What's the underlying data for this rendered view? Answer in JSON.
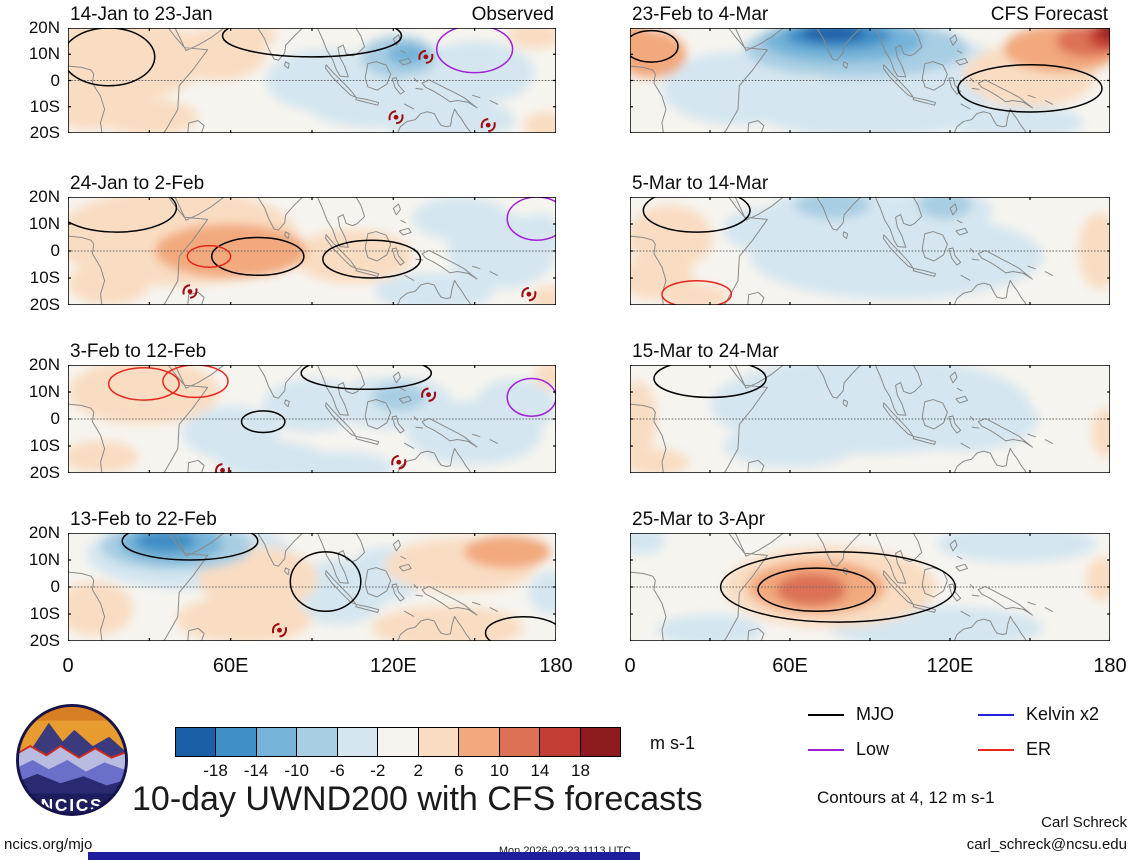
{
  "chart_data": {
    "type": "heatmap",
    "title": "10-day UWND200 with CFS forecasts",
    "variable": "UWND200",
    "units": "m s-1",
    "columns": [
      "Observed",
      "CFS Forecast"
    ],
    "x_axis": {
      "tick_labels": [
        "0",
        "60E",
        "120E",
        "180"
      ],
      "range_deg_east": [
        0,
        180
      ]
    },
    "y_axis": {
      "tick_labels": [
        "20N",
        "10N",
        "0",
        "10S",
        "20S"
      ],
      "range_deg_north": [
        20,
        -20
      ]
    },
    "colorbar": {
      "tick_labels": [
        "-18",
        "-14",
        "-10",
        "-6",
        "-2",
        "2",
        "6",
        "10",
        "14",
        "18"
      ],
      "colors": [
        "#1b5fa7",
        "#3f8ec6",
        "#75b3d8",
        "#a8cee3",
        "#d5e6f0",
        "#f7f4f0",
        "#f9ddc2",
        "#f2a97d",
        "#dc7156",
        "#c23d33",
        "#8e1b1e"
      ]
    },
    "contour_levels_note": "Contours at 4, 12 m s-1",
    "anomaly_format": [
      "lon_e",
      "lat_n",
      "radius_lon",
      "radius_lat",
      "value_m_s"
    ],
    "contour_format": [
      "wave",
      "lon_e",
      "lat_n",
      "radius_lon",
      "radius_lat"
    ],
    "cyclone_format": [
      "lon_e",
      "lat_n"
    ],
    "panels": [
      {
        "title": "14-Jan to 23-Jan",
        "corner_label": "Observed",
        "anomalies": [
          [
            20,
            8,
            30,
            16,
            4
          ],
          [
            8,
            -10,
            14,
            9,
            6
          ],
          [
            30,
            -14,
            18,
            7,
            4
          ],
          [
            55,
            10,
            18,
            10,
            4
          ],
          [
            65,
            17,
            12,
            5,
            4
          ],
          [
            95,
            0,
            22,
            12,
            -4
          ],
          [
            122,
            9,
            14,
            8,
            -8
          ],
          [
            125,
            10,
            7,
            4,
            -12
          ],
          [
            112,
            -8,
            25,
            10,
            -4
          ],
          [
            150,
            3,
            22,
            12,
            -4
          ],
          [
            140,
            -15,
            25,
            8,
            -4
          ],
          [
            172,
            17,
            10,
            5,
            4
          ],
          [
            176,
            -17,
            8,
            5,
            4
          ]
        ],
        "wave_contours": [
          [
            "MJO",
            15,
            9,
            17,
            11
          ],
          [
            "MJO",
            90,
            17,
            33,
            8
          ],
          [
            "Low",
            150,
            12,
            14,
            9
          ]
        ],
        "cyclones": [
          [
            132,
            9
          ],
          [
            121,
            -14
          ],
          [
            155,
            -17
          ]
        ]
      },
      {
        "title": "24-Jan to 2-Feb",
        "corner_label": "",
        "anomalies": [
          [
            40,
            5,
            45,
            18,
            4
          ],
          [
            60,
            0,
            28,
            10,
            8
          ],
          [
            25,
            12,
            18,
            8,
            6
          ],
          [
            15,
            -12,
            15,
            8,
            4
          ],
          [
            105,
            -2,
            22,
            10,
            4
          ],
          [
            145,
            12,
            18,
            8,
            -4
          ],
          [
            160,
            0,
            20,
            14,
            -2
          ],
          [
            135,
            -15,
            22,
            7,
            -4
          ],
          [
            178,
            -18,
            7,
            5,
            6
          ],
          [
            174,
            6,
            8,
            8,
            -2
          ]
        ],
        "wave_contours": [
          [
            "MJO",
            18,
            16,
            22,
            9
          ],
          [
            "MJO",
            70,
            -2,
            17,
            7
          ],
          [
            "MJO",
            112,
            -3,
            18,
            7
          ],
          [
            "ER",
            52,
            -2,
            8,
            4
          ],
          [
            "Low",
            173,
            12,
            11,
            8
          ]
        ],
        "cyclones": [
          [
            45,
            -15
          ],
          [
            170,
            -16
          ]
        ]
      },
      {
        "title": "3-Feb to 12-Feb",
        "corner_label": "",
        "anomalies": [
          [
            28,
            10,
            28,
            12,
            4
          ],
          [
            32,
            15,
            14,
            5,
            6
          ],
          [
            12,
            -14,
            14,
            6,
            4
          ],
          [
            60,
            -5,
            18,
            10,
            -2
          ],
          [
            75,
            -15,
            20,
            7,
            -4
          ],
          [
            90,
            5,
            18,
            10,
            -2
          ],
          [
            120,
            6,
            22,
            10,
            -4
          ],
          [
            122,
            8,
            10,
            5,
            -6
          ],
          [
            150,
            -5,
            25,
            12,
            -4
          ],
          [
            165,
            5,
            15,
            10,
            -4
          ],
          [
            178,
            16,
            6,
            5,
            4
          ],
          [
            100,
            -18,
            20,
            6,
            -4
          ]
        ],
        "wave_contours": [
          [
            "ER",
            28,
            13,
            13,
            6
          ],
          [
            "ER",
            47,
            14,
            12,
            6
          ],
          [
            "MJO",
            72,
            -1,
            8,
            4
          ],
          [
            "MJO",
            110,
            17,
            24,
            6
          ],
          [
            "Low",
            171,
            8,
            9,
            7
          ]
        ],
        "cyclones": [
          [
            133,
            9
          ],
          [
            122,
            -16
          ],
          [
            57,
            -19
          ]
        ]
      },
      {
        "title": "13-Feb to 22-Feb",
        "corner_label": "",
        "anomalies": [
          [
            45,
            12,
            38,
            13,
            -4
          ],
          [
            40,
            15,
            28,
            9,
            -6
          ],
          [
            38,
            16,
            19,
            7,
            -12
          ],
          [
            36,
            17,
            11,
            4,
            -16
          ],
          [
            10,
            -8,
            14,
            10,
            4
          ],
          [
            70,
            3,
            22,
            12,
            4
          ],
          [
            65,
            -12,
            25,
            9,
            4
          ],
          [
            100,
            -2,
            18,
            12,
            -2
          ],
          [
            118,
            5,
            15,
            10,
            -2
          ],
          [
            145,
            8,
            28,
            10,
            4
          ],
          [
            162,
            13,
            16,
            6,
            8
          ],
          [
            140,
            -15,
            28,
            8,
            4
          ],
          [
            178,
            -2,
            8,
            8,
            -2
          ]
        ],
        "wave_contours": [
          [
            "MJO",
            45,
            17,
            25,
            7
          ],
          [
            "MJO",
            95,
            2,
            13,
            11
          ],
          [
            "MJO",
            168,
            -17,
            14,
            6
          ]
        ],
        "cyclones": [
          [
            78,
            -16
          ]
        ]
      },
      {
        "title": "23-Feb to 4-Mar",
        "corner_label": "CFS Forecast",
        "anomalies": [
          [
            85,
            12,
            42,
            11,
            -6
          ],
          [
            80,
            15,
            30,
            8,
            -12
          ],
          [
            78,
            17,
            20,
            5,
            -16
          ],
          [
            76,
            18,
            12,
            3,
            -20
          ],
          [
            2,
            13,
            8,
            8,
            10
          ],
          [
            8,
            10,
            13,
            9,
            8
          ],
          [
            162,
            12,
            22,
            9,
            8
          ],
          [
            172,
            15,
            12,
            6,
            12
          ],
          [
            179,
            17,
            7,
            5,
            16
          ],
          [
            180,
            19,
            4,
            3,
            20
          ],
          [
            150,
            2,
            25,
            12,
            4
          ],
          [
            90,
            -10,
            45,
            12,
            -4
          ],
          [
            40,
            -3,
            28,
            14,
            -2
          ],
          [
            145,
            -16,
            25,
            7,
            -2
          ],
          [
            120,
            5,
            20,
            10,
            -2
          ]
        ],
        "wave_contours": [
          [
            "MJO",
            150,
            -3,
            27,
            9
          ],
          [
            "MJO",
            8,
            13,
            10,
            6
          ]
        ],
        "cyclones": []
      },
      {
        "title": "5-Mar to 14-Mar",
        "corner_label": "",
        "anomalies": [
          [
            78,
            15,
            26,
            8,
            -4
          ],
          [
            76,
            17,
            14,
            5,
            -8
          ],
          [
            116,
            15,
            20,
            8,
            -4
          ],
          [
            118,
            17,
            10,
            5,
            -8
          ],
          [
            100,
            -2,
            55,
            16,
            -2
          ],
          [
            15,
            5,
            16,
            12,
            4
          ],
          [
            10,
            -10,
            14,
            8,
            4
          ],
          [
            25,
            -17,
            12,
            5,
            4
          ],
          [
            176,
            0,
            8,
            14,
            4
          ],
          [
            50,
            8,
            15,
            8,
            -2
          ]
        ],
        "wave_contours": [
          [
            "MJO",
            25,
            15,
            20,
            8
          ],
          [
            "ER",
            25,
            -16,
            13,
            5
          ]
        ],
        "cyclones": []
      },
      {
        "title": "15-Mar to 24-Mar",
        "corner_label": "",
        "anomalies": [
          [
            90,
            5,
            60,
            18,
            -2
          ],
          [
            95,
            12,
            35,
            8,
            -4
          ],
          [
            125,
            0,
            28,
            12,
            -4
          ],
          [
            3,
            0,
            7,
            14,
            4
          ],
          [
            10,
            -16,
            12,
            5,
            4
          ],
          [
            178,
            -5,
            5,
            9,
            4
          ],
          [
            60,
            -10,
            25,
            8,
            -2
          ]
        ],
        "wave_contours": [
          [
            "MJO",
            30,
            15,
            21,
            7
          ]
        ],
        "cyclones": []
      },
      {
        "title": "25-Mar to 3-Apr",
        "corner_label": "",
        "anomalies": [
          [
            75,
            0,
            40,
            15,
            4
          ],
          [
            70,
            0,
            26,
            10,
            8
          ],
          [
            68,
            -1,
            13,
            6,
            12
          ],
          [
            145,
            16,
            30,
            7,
            -2
          ],
          [
            115,
            -15,
            40,
            8,
            -2
          ],
          [
            30,
            -16,
            20,
            6,
            -2
          ],
          [
            5,
            17,
            8,
            5,
            -2
          ],
          [
            177,
            3,
            6,
            8,
            4
          ]
        ],
        "wave_contours": [
          [
            "MJO",
            78,
            0,
            44,
            13
          ],
          [
            "MJO",
            70,
            -1,
            22,
            8
          ]
        ],
        "cyclones": []
      }
    ]
  },
  "legend": {
    "items": [
      {
        "label": "MJO",
        "color": "#000000"
      },
      {
        "label": "Kelvin x2",
        "color": "#2222dd"
      },
      {
        "label": "Low",
        "color": "#a21fd6"
      },
      {
        "label": "ER",
        "color": "#e8261b"
      }
    ]
  },
  "footer": {
    "contours_note": "Contours at 4, 12 m s-1",
    "title": "10-day UWND200 with CFS forecasts",
    "credit_name": "Carl Schreck",
    "credit_email": "carl_schreck@ncsu.edu",
    "site": "ncics.org/mjo",
    "timestamp": "Mon 2026-02-23 1113 UTC",
    "logo_text": "NCICS"
  }
}
